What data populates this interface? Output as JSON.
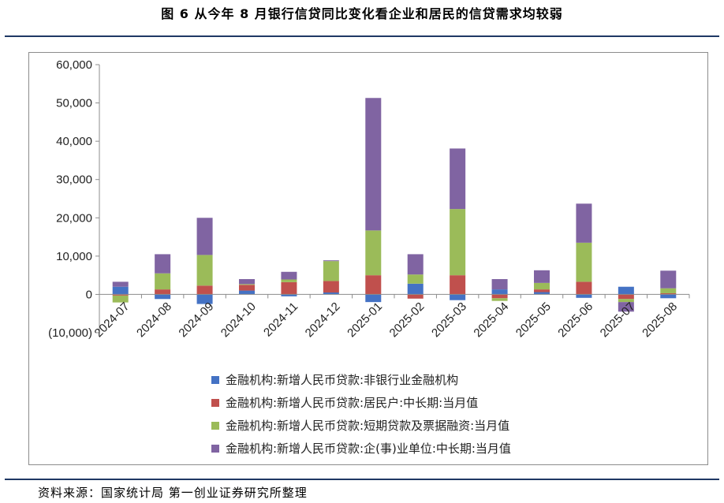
{
  "figure_title": "图 6    从今年 8 月银行信贷同比变化看企业和居民的信贷需求均较弱",
  "source_note": "资料来源：国家统计局    第一创业证券研究所整理",
  "chart_data": {
    "type": "bar",
    "stacked": true,
    "categories": [
      "2024-07",
      "2024-08",
      "2024-09",
      "2024-10",
      "2024-11",
      "2024-12",
      "2025-01",
      "2025-02",
      "2025-03",
      "2025-04",
      "2025-05",
      "2025-06",
      "2025-07",
      "2025-08"
    ],
    "y_tick_labels": [
      "(10,000)",
      "0",
      "10,000",
      "20,000",
      "30,000",
      "40,000",
      "50,000",
      "60,000"
    ],
    "ylim": [
      -10000,
      60000
    ],
    "legend_position": "bottom",
    "grid": false,
    "series": [
      {
        "name": "金融机构:新增人民币贷款:非银行业金融机构",
        "color": "#4472c4",
        "values": [
          2000,
          -1200,
          -2500,
          1000,
          -500,
          500,
          -2000,
          2800,
          -1500,
          1300,
          600,
          -900,
          2000,
          -1000
        ]
      },
      {
        "name": "金融机构:新增人民币贷款:居民户:中长期:当月值",
        "color": "#c0504d",
        "values": [
          -300,
          1300,
          2300,
          1500,
          3200,
          3000,
          5000,
          -1100,
          5000,
          -1000,
          700,
          3300,
          -1200,
          300
        ]
      },
      {
        "name": "金融机构:新增人民币贷款:短期贷款及票据融资:当月值",
        "color": "#9bbb59",
        "values": [
          -1800,
          4200,
          8000,
          200,
          700,
          5200,
          11700,
          2400,
          17300,
          -700,
          1700,
          10200,
          -800,
          1300
        ]
      },
      {
        "name": "金融机构:新增人民币贷款:企(事)业单位:中长期:当月值",
        "color": "#8064a2",
        "values": [
          1300,
          5000,
          9700,
          1300,
          2000,
          200,
          34600,
          5300,
          15800,
          2700,
          3300,
          10200,
          -2500,
          4600
        ]
      }
    ]
  }
}
